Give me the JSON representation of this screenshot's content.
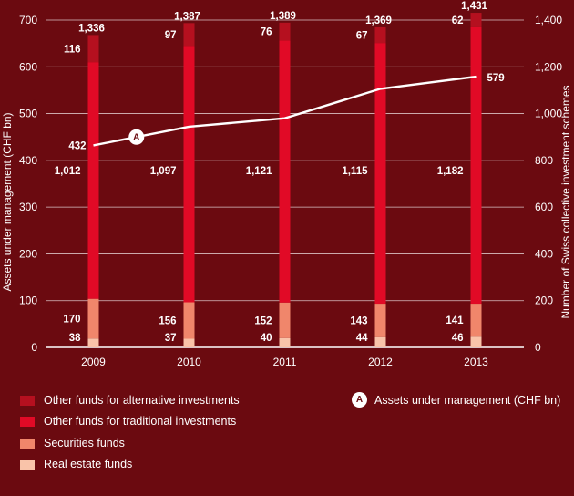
{
  "chart_data": {
    "type": "bar",
    "categories": [
      "2009",
      "2010",
      "2011",
      "2012",
      "2013"
    ],
    "stacked": true,
    "series": [
      {
        "name": "Real estate funds",
        "color": "#f9c3a9",
        "values": [
          38,
          37,
          40,
          44,
          46
        ]
      },
      {
        "name": "Securities funds",
        "color": "#f0866b",
        "values": [
          170,
          156,
          152,
          143,
          141
        ]
      },
      {
        "name": "Other funds for traditional investments",
        "color": "#e10a26",
        "values": [
          1012,
          1097,
          1121,
          1115,
          1182
        ]
      },
      {
        "name": "Other funds for alternative investments",
        "color": "#b5101f",
        "values": [
          116,
          97,
          76,
          67,
          62
        ]
      }
    ],
    "totals": [
      1336,
      1387,
      1389,
      1369,
      1431
    ],
    "total_labels": [
      "1,336",
      "1,387",
      "1,389",
      "1,369",
      "1,431"
    ],
    "segment_labels": [
      [
        "38",
        "37",
        "40",
        "44",
        "46"
      ],
      [
        "170",
        "156",
        "152",
        "143",
        "141"
      ],
      [
        "1,012",
        "1,097",
        "1,121",
        "1,115",
        "1,182"
      ],
      [
        "116",
        "97",
        "76",
        "67",
        "62"
      ]
    ],
    "line": {
      "name": "Assets under management (CHF bn)",
      "marker": "A",
      "values": [
        432,
        472,
        490,
        553,
        579
      ],
      "start_label": "432",
      "end_label": "579"
    },
    "left_axis": {
      "label": "Assets under management (CHF bn)",
      "min": 0,
      "max": 700,
      "ticks": [
        "0",
        "100",
        "200",
        "300",
        "400",
        "500",
        "600",
        "700"
      ]
    },
    "right_axis": {
      "label": "Number of Swiss collective investment schemes",
      "min": 0,
      "max": 1400,
      "ticks": [
        "0",
        "200",
        "400",
        "600",
        "800",
        "1,000",
        "1,200",
        "1,400"
      ]
    },
    "grid": true,
    "legend_position": "bottom"
  },
  "legend": {
    "items": [
      {
        "label": "Other funds for alternative investments",
        "color": "#b5101f"
      },
      {
        "label": "Other funds for traditional investments",
        "color": "#e10a26"
      },
      {
        "label": "Securities funds",
        "color": "#f0866b"
      },
      {
        "label": "Real estate funds",
        "color": "#f9c3a9"
      }
    ],
    "line_marker": "A",
    "line_label": "Assets under management (CHF bn)"
  }
}
